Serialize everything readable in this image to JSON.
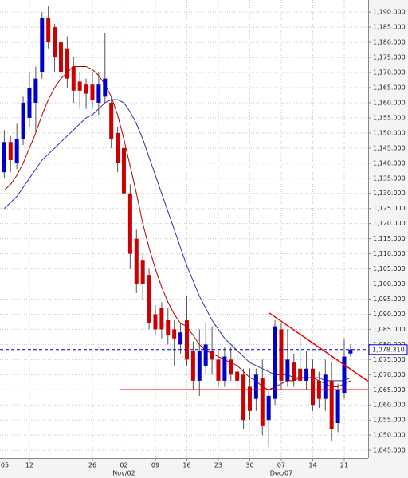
{
  "chart_data": {
    "type": "candlestick",
    "up_color": "#0000cc",
    "down_color": "#cc0000",
    "x": [
      1,
      2,
      3,
      4,
      5,
      6,
      7,
      8,
      9,
      10,
      11,
      12,
      13,
      14,
      15,
      16,
      17,
      18,
      19,
      20,
      21,
      22,
      23,
      24,
      25,
      26,
      27,
      28,
      29,
      30,
      31,
      32,
      33,
      34,
      35,
      36,
      37,
      38,
      39,
      40,
      41,
      42,
      43,
      44,
      45,
      46,
      47,
      48,
      49,
      50,
      51,
      52,
      53,
      54,
      55,
      56
    ],
    "open": [
      1137,
      1147,
      1140,
      1148,
      1155,
      1160,
      1170,
      1188,
      1185,
      1180,
      1178,
      1172,
      1167,
      1166,
      1166,
      1160,
      1162,
      1160,
      1150,
      1145,
      1130,
      1115,
      1108,
      1103,
      1090,
      1092,
      1088,
      1085,
      1080,
      1088,
      1078,
      1068,
      1073,
      1078,
      1075,
      1068,
      1075,
      1071,
      1070,
      1066,
      1062,
      1069,
      1055,
      1062,
      1085,
      1068,
      1074,
      1072,
      1068,
      1072,
      1068,
      1062,
      1068,
      1054,
      1064,
      1077
    ],
    "high": [
      1151,
      1149,
      1153,
      1162,
      1170,
      1172,
      1190,
      1192,
      1186,
      1183,
      1182,
      1175,
      1170,
      1168,
      1170,
      1170,
      1183,
      1162,
      1152,
      1147,
      1133,
      1118,
      1110,
      1105,
      1093,
      1094,
      1092,
      1088,
      1087,
      1096,
      1081,
      1085,
      1087,
      1086,
      1078,
      1079,
      1079,
      1077,
      1072,
      1072,
      1072,
      1075,
      1065,
      1088,
      1087,
      1085,
      1077,
      1085,
      1078,
      1075,
      1071,
      1075,
      1074,
      1067,
      1082,
      1080
    ],
    "low": [
      1135,
      1137,
      1138,
      1146,
      1152,
      1150,
      1168,
      1178,
      1170,
      1168,
      1165,
      1160,
      1158,
      1158,
      1158,
      1156,
      1160,
      1145,
      1137,
      1128,
      1105,
      1097,
      1095,
      1085,
      1083,
      1082,
      1080,
      1073,
      1077,
      1073,
      1065,
      1063,
      1070,
      1070,
      1066,
      1066,
      1068,
      1066,
      1052,
      1055,
      1058,
      1050,
      1046,
      1060,
      1065,
      1066,
      1066,
      1067,
      1065,
      1058,
      1059,
      1058,
      1048,
      1051,
      1062,
      1076
    ],
    "close": [
      1147,
      1141,
      1148,
      1160,
      1165,
      1168,
      1188,
      1180,
      1175,
      1170,
      1168,
      1164,
      1164,
      1163,
      1161,
      1166,
      1168,
      1148,
      1140,
      1130,
      1110,
      1100,
      1100,
      1087,
      1085,
      1085,
      1083,
      1082,
      1084,
      1075,
      1068,
      1078,
      1080,
      1075,
      1068,
      1076,
      1070,
      1068,
      1055,
      1058,
      1070,
      1053,
      1063,
      1086,
      1068,
      1075,
      1068,
      1068,
      1072,
      1060,
      1062,
      1070,
      1052,
      1065,
      1076,
      1078.31
    ],
    "series": [
      {
        "color": "#b00000",
        "values": [
          1131,
          1133,
          1136,
          1140,
          1145,
          1150,
          1156,
          1161,
          1165,
          1168,
          1170,
          1172,
          1172,
          1172,
          1171,
          1169,
          1166,
          1162,
          1156,
          1148,
          1139,
          1130,
          1120,
          1112,
          1105,
          1099,
          1094,
          1090,
          1087,
          1086,
          1083,
          1080,
          1078,
          1077,
          1076,
          1075,
          1074,
          1073,
          1071,
          1069,
          1068,
          1066,
          1065,
          1066,
          1067,
          1068,
          1068,
          1069,
          1069,
          1069,
          1068,
          1067,
          1066,
          1066,
          1067,
          1068
        ]
      },
      {
        "color": "#3030a0",
        "values": [
          1125,
          1127,
          1129,
          1132,
          1135,
          1138,
          1141,
          1143,
          1145,
          1147,
          1149,
          1151,
          1153,
          1155,
          1156,
          1158,
          1160,
          1161,
          1161,
          1160,
          1157,
          1153,
          1148,
          1142,
          1136,
          1130,
          1124,
          1118,
          1112,
          1106,
          1101,
          1096,
          1092,
          1088,
          1085,
          1082,
          1080,
          1078,
          1076,
          1074,
          1073,
          1072,
          1071,
          1070,
          1070,
          1070,
          1069,
          1069,
          1069,
          1069,
          1069,
          1068,
          1068,
          1068,
          1068,
          1069
        ]
      }
    ],
    "trend_lines": [
      {
        "color": "#ee0000",
        "x": [
          19.3,
          58.8
        ],
        "y": [
          1065,
          1065
        ]
      },
      {
        "color": "#ee0000",
        "x": [
          43.1,
          58.8
        ],
        "y": [
          1090.4,
          1067.8
        ]
      }
    ],
    "last_price": {
      "value": 1078.31,
      "label": "1,078.310",
      "color": "#0000cc"
    },
    "xlim": [
      0.32,
      58.8
    ],
    "xticks": [
      {
        "value": 0,
        "label": "05"
      },
      {
        "value": 5,
        "label": "12"
      },
      {
        "value": 15,
        "label": "26"
      },
      {
        "value": 20,
        "label": "02"
      },
      {
        "value": 25,
        "label": "09"
      },
      {
        "value": 30,
        "label": "16"
      },
      {
        "value": 35,
        "label": "23"
      },
      {
        "value": 40,
        "label": "30"
      },
      {
        "value": 45,
        "label": "07"
      },
      {
        "value": 50,
        "label": "14"
      },
      {
        "value": 55,
        "label": "21"
      }
    ],
    "month_ticks": [
      {
        "value": 20,
        "label": "Nov/02"
      },
      {
        "value": 45,
        "label": "Dec/07"
      }
    ],
    "ylim": [
      1042.4,
      1194
    ],
    "yticks": [
      {
        "value": 1045,
        "label": "1,045.000"
      },
      {
        "value": 1050,
        "label": "1,050.000"
      },
      {
        "value": 1055,
        "label": "1,055.000"
      },
      {
        "value": 1060,
        "label": "1,060.000"
      },
      {
        "value": 1065,
        "label": "1,065.000"
      },
      {
        "value": 1070,
        "label": "1,070.000"
      },
      {
        "value": 1075,
        "label": "1,075.000"
      },
      {
        "value": 1080,
        "label": "1,080.000"
      },
      {
        "value": 1085,
        "label": "1,085.000"
      },
      {
        "value": 1090,
        "label": "1,090.000"
      },
      {
        "value": 1095,
        "label": "1,095.000"
      },
      {
        "value": 1100,
        "label": "1,100.000"
      },
      {
        "value": 1105,
        "label": "1,105.000"
      },
      {
        "value": 1110,
        "label": "1,110.000"
      },
      {
        "value": 1115,
        "label": "1,115.000"
      },
      {
        "value": 1120,
        "label": "1,120.000"
      },
      {
        "value": 1125,
        "label": "1,125.000"
      },
      {
        "value": 1130,
        "label": "1,130.000"
      },
      {
        "value": 1135,
        "label": "1,135.000"
      },
      {
        "value": 1140,
        "label": "1,140.000"
      },
      {
        "value": 1145,
        "label": "1,145.000"
      },
      {
        "value": 1150,
        "label": "1,150.000"
      },
      {
        "value": 1155,
        "label": "1,155.000"
      },
      {
        "value": 1160,
        "label": "1,160.000"
      },
      {
        "value": 1165,
        "label": "1,165.000"
      },
      {
        "value": 1170,
        "label": "1,170.000"
      },
      {
        "value": 1175,
        "label": "1,175.000"
      },
      {
        "value": 1180,
        "label": "1,180.000"
      },
      {
        "value": 1185,
        "label": "1,185.000"
      },
      {
        "value": 1190,
        "label": "1,190.000"
      }
    ],
    "grid": true
  }
}
